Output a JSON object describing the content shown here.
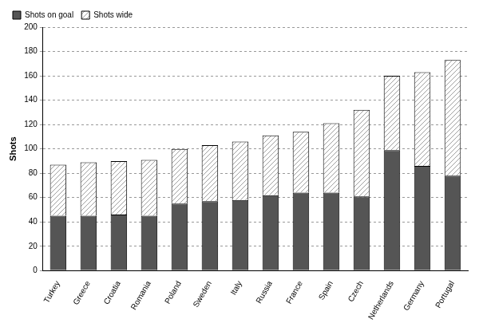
{
  "chart_data": {
    "type": "bar",
    "stacked": true,
    "grid": true,
    "legend": "top-left",
    "y_label": "Shots",
    "categories": [
      "Turkey",
      "Greece",
      "Croatia",
      "Romania",
      "Poland",
      "Sweden",
      "Italy",
      "Russia",
      "France",
      "Spain",
      "Czech",
      "Netherlands",
      "Germany",
      "Portugal"
    ],
    "series": [
      {
        "name": "Shots on goal",
        "color": "#555555",
        "values": [
          45,
          45,
          46,
          45,
          55,
          57,
          58,
          62,
          64,
          64,
          61,
          99,
          86,
          78
        ]
      },
      {
        "name": "Shots wide",
        "color": "#a0a0a0",
        "values": [
          42,
          44,
          44,
          46,
          45,
          46,
          48,
          49,
          50,
          57,
          71,
          61,
          77,
          95
        ]
      }
    ],
    "ylim": [
      0,
      200
    ],
    "yticks": [
      0,
      20,
      40,
      60,
      80,
      100,
      120,
      140,
      160,
      180,
      200
    ]
  }
}
